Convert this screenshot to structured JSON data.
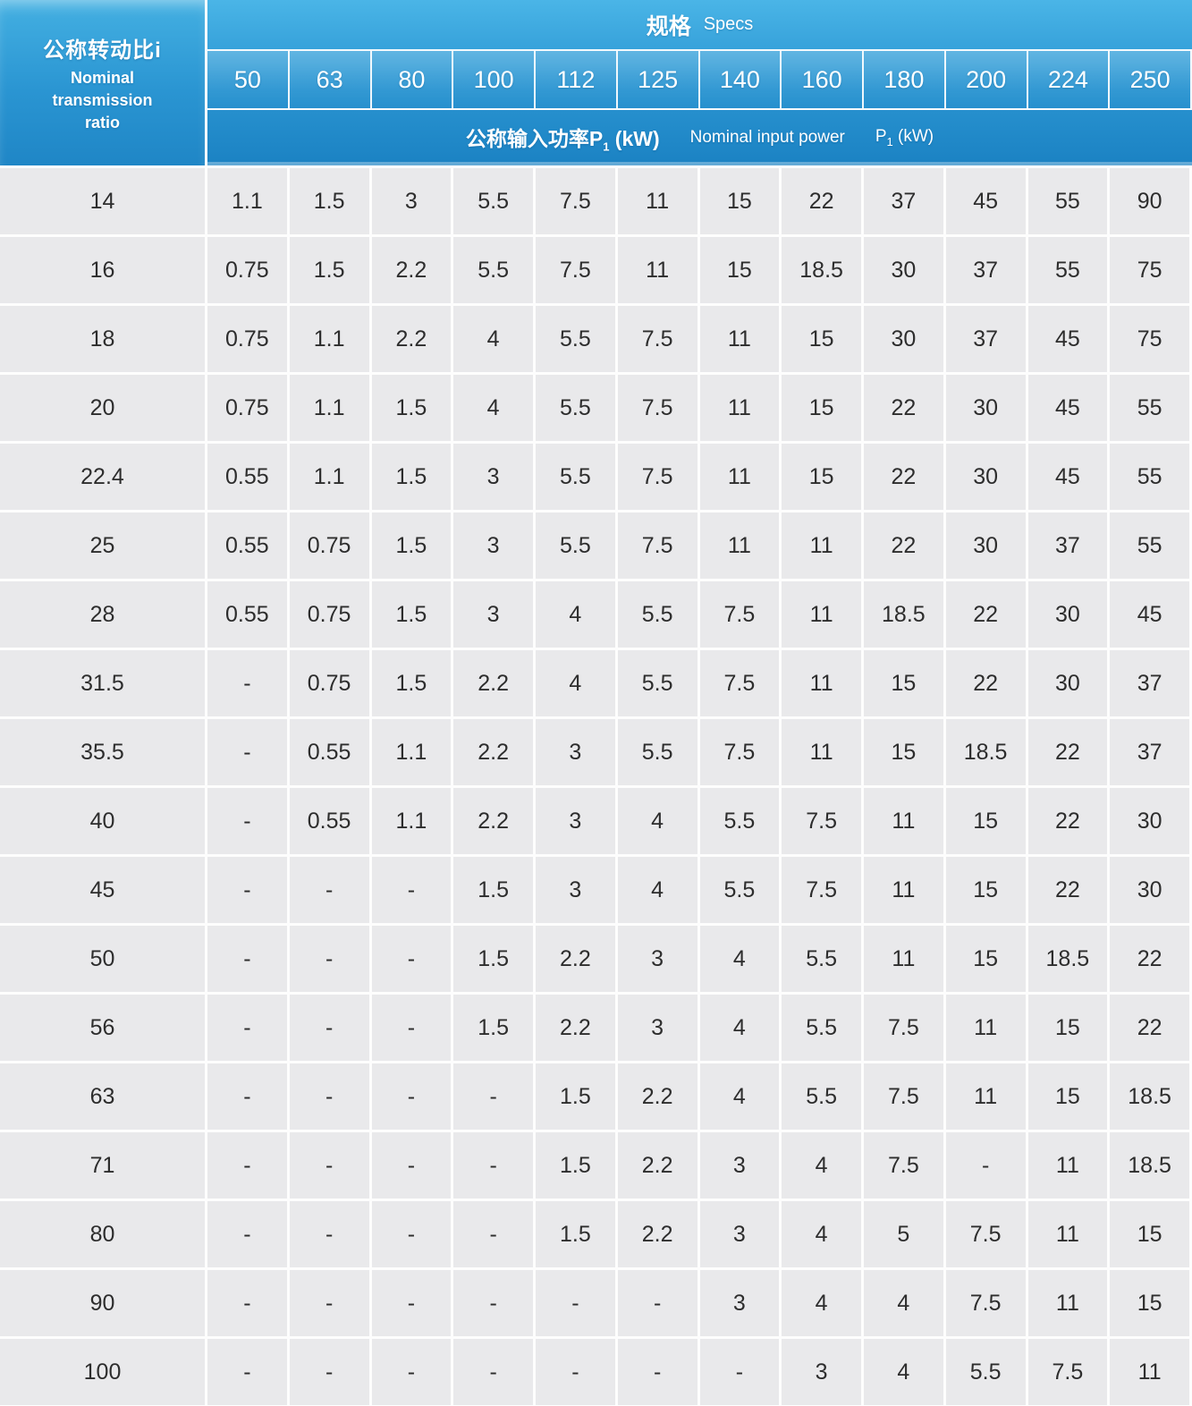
{
  "header": {
    "row_header": {
      "zh": "公称转动比i",
      "en1": "Nominal",
      "en2": "transmission",
      "en3": "ratio"
    },
    "specs": {
      "zh": "规格",
      "en": "Specs"
    },
    "power": {
      "zh": "公称输入功率P",
      "sub": "1",
      "unit": " (kW)",
      "en": "Nominal input power",
      "p": "P"
    }
  },
  "colors": {
    "header_blue_top": "#4ab5e7",
    "header_blue_bottom": "#1b82c3",
    "cell_background": "#e9e9eb",
    "grid_line": "#fdfdfd",
    "header_text": "#ffffff",
    "cell_text": "#2d2d2d"
  },
  "table": {
    "columns": [
      "50",
      "63",
      "80",
      "100",
      "112",
      "125",
      "140",
      "160",
      "180",
      "200",
      "224",
      "250"
    ],
    "empty_marker": "-",
    "rows": [
      {
        "ratio": "14",
        "values": [
          "1.1",
          "1.5",
          "3",
          "5.5",
          "7.5",
          "11",
          "15",
          "22",
          "37",
          "45",
          "55",
          "90"
        ]
      },
      {
        "ratio": "16",
        "values": [
          "0.75",
          "1.5",
          "2.2",
          "5.5",
          "7.5",
          "11",
          "15",
          "18.5",
          "30",
          "37",
          "55",
          "75"
        ]
      },
      {
        "ratio": "18",
        "values": [
          "0.75",
          "1.1",
          "2.2",
          "4",
          "5.5",
          "7.5",
          "11",
          "15",
          "30",
          "37",
          "45",
          "75"
        ]
      },
      {
        "ratio": "20",
        "values": [
          "0.75",
          "1.1",
          "1.5",
          "4",
          "5.5",
          "7.5",
          "11",
          "15",
          "22",
          "30",
          "45",
          "55"
        ]
      },
      {
        "ratio": "22.4",
        "values": [
          "0.55",
          "1.1",
          "1.5",
          "3",
          "5.5",
          "7.5",
          "11",
          "15",
          "22",
          "30",
          "45",
          "55"
        ]
      },
      {
        "ratio": "25",
        "values": [
          "0.55",
          "0.75",
          "1.5",
          "3",
          "5.5",
          "7.5",
          "11",
          "11",
          "22",
          "30",
          "37",
          "55"
        ]
      },
      {
        "ratio": "28",
        "values": [
          "0.55",
          "0.75",
          "1.5",
          "3",
          "4",
          "5.5",
          "7.5",
          "11",
          "18.5",
          "22",
          "30",
          "45"
        ]
      },
      {
        "ratio": "31.5",
        "values": [
          "-",
          "0.75",
          "1.5",
          "2.2",
          "4",
          "5.5",
          "7.5",
          "11",
          "15",
          "22",
          "30",
          "37"
        ]
      },
      {
        "ratio": "35.5",
        "values": [
          "-",
          "0.55",
          "1.1",
          "2.2",
          "3",
          "5.5",
          "7.5",
          "11",
          "15",
          "18.5",
          "22",
          "37"
        ]
      },
      {
        "ratio": "40",
        "values": [
          "-",
          "0.55",
          "1.1",
          "2.2",
          "3",
          "4",
          "5.5",
          "7.5",
          "11",
          "15",
          "22",
          "30"
        ]
      },
      {
        "ratio": "45",
        "values": [
          "-",
          "-",
          "-",
          "1.5",
          "3",
          "4",
          "5.5",
          "7.5",
          "11",
          "15",
          "22",
          "30"
        ]
      },
      {
        "ratio": "50",
        "values": [
          "-",
          "-",
          "-",
          "1.5",
          "2.2",
          "3",
          "4",
          "5.5",
          "11",
          "15",
          "18.5",
          "22"
        ]
      },
      {
        "ratio": "56",
        "values": [
          "-",
          "-",
          "-",
          "1.5",
          "2.2",
          "3",
          "4",
          "5.5",
          "7.5",
          "11",
          "15",
          "22"
        ]
      },
      {
        "ratio": "63",
        "values": [
          "-",
          "-",
          "-",
          "-",
          "1.5",
          "2.2",
          "4",
          "5.5",
          "7.5",
          "11",
          "15",
          "18.5"
        ]
      },
      {
        "ratio": "71",
        "values": [
          "-",
          "-",
          "-",
          "-",
          "1.5",
          "2.2",
          "3",
          "4",
          "7.5",
          "-",
          "11",
          "18.5"
        ]
      },
      {
        "ratio": "80",
        "values": [
          "-",
          "-",
          "-",
          "-",
          "1.5",
          "2.2",
          "3",
          "4",
          "5",
          "7.5",
          "11",
          "15"
        ]
      },
      {
        "ratio": "90",
        "values": [
          "-",
          "-",
          "-",
          "-",
          "-",
          "-",
          "3",
          "4",
          "4",
          "7.5",
          "11",
          "15"
        ]
      },
      {
        "ratio": "100",
        "values": [
          "-",
          "-",
          "-",
          "-",
          "-",
          "-",
          "-",
          "3",
          "4",
          "5.5",
          "7.5",
          "11"
        ]
      }
    ]
  }
}
